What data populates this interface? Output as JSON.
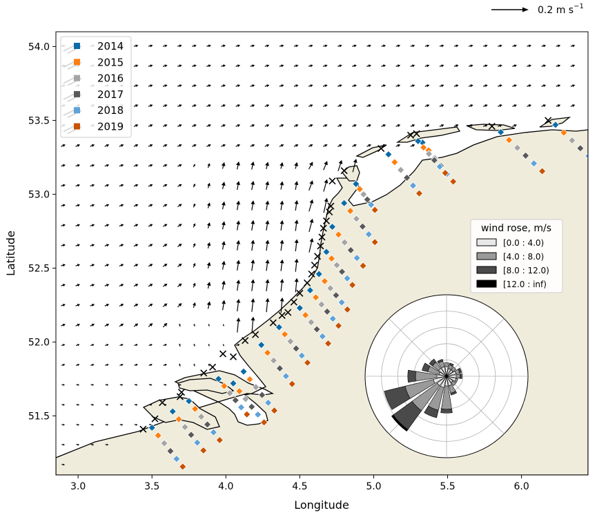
{
  "chart_data": {
    "type": "quiver-map",
    "xlabel": "Longitude",
    "ylabel": "Latitude",
    "xlim": [
      2.85,
      6.45
    ],
    "ylim": [
      51.1,
      54.1
    ],
    "xticks": [
      "3.0",
      "3.5",
      "4.0",
      "4.5",
      "5.0",
      "5.5",
      "6.0"
    ],
    "yticks": [
      "51.5",
      "52.0",
      "52.5",
      "53.0",
      "53.5",
      "54.0"
    ],
    "quiver_key": {
      "label": "0.2 m s$^{-1}$",
      "label_text": "0.2 m s",
      "label_sup": "−1"
    },
    "legend": {
      "position": "top-left",
      "entries": [
        {
          "label": "2014",
          "color": "#0a6ca8"
        },
        {
          "label": "2015",
          "color": "#ff7f0e"
        },
        {
          "label": "2016",
          "color": "#a5a5a5"
        },
        {
          "label": "2017",
          "color": "#595959"
        },
        {
          "label": "2018",
          "color": "#5fa2d8"
        },
        {
          "label": "2019",
          "color": "#c85200"
        }
      ]
    },
    "wind_rose": {
      "title": "wind rose, m/s",
      "bins": [
        {
          "label": "[0.0 : 4.0)",
          "color": "#e8e8e8"
        },
        {
          "label": "[4.0 : 8.0)",
          "color": "#9a9a9a"
        },
        {
          "label": "[8.0 : 12.0)",
          "color": "#4a4a4a"
        },
        {
          "label": "[12.0 : inf)",
          "color": "#000000"
        }
      ],
      "directions_deg": [
        0,
        22.5,
        45,
        67.5,
        90,
        112.5,
        135,
        157.5,
        180,
        202.5,
        225,
        247.5,
        270,
        292.5,
        315,
        337.5
      ],
      "segments": [
        [
          0.05,
          0.02,
          0.0,
          0.0
        ],
        [
          0.04,
          0.02,
          0.01,
          0.0
        ],
        [
          0.04,
          0.02,
          0.0,
          0.0
        ],
        [
          0.05,
          0.02,
          0.01,
          0.0
        ],
        [
          0.05,
          0.02,
          0.01,
          0.0
        ],
        [
          0.05,
          0.01,
          0.0,
          0.0
        ],
        [
          0.04,
          0.02,
          0.0,
          0.0
        ],
        [
          0.05,
          0.04,
          0.01,
          0.0
        ],
        [
          0.05,
          0.12,
          0.02,
          0.0
        ],
        [
          0.06,
          0.12,
          0.04,
          0.0
        ],
        [
          0.06,
          0.16,
          0.12,
          0.01
        ],
        [
          0.07,
          0.15,
          0.11,
          0.0
        ],
        [
          0.05,
          0.11,
          0.04,
          0.0
        ],
        [
          0.04,
          0.06,
          0.03,
          0.0
        ],
        [
          0.05,
          0.04,
          0.02,
          0.0
        ],
        [
          0.05,
          0.03,
          0.01,
          0.0
        ]
      ],
      "rmax": 0.42
    },
    "stations": [
      {
        "x": 3.44,
        "y": 51.41
      },
      {
        "x": 3.52,
        "y": 51.48
      },
      {
        "x": 3.57,
        "y": 51.59
      },
      {
        "x": 3.69,
        "y": 51.63
      },
      {
        "x": 3.7,
        "y": 51.66
      },
      {
        "x": 3.85,
        "y": 51.79
      },
      {
        "x": 3.91,
        "y": 51.83
      },
      {
        "x": 3.98,
        "y": 51.92
      },
      {
        "x": 4.05,
        "y": 51.9
      },
      {
        "x": 4.13,
        "y": 52.01
      },
      {
        "x": 4.2,
        "y": 52.05
      },
      {
        "x": 4.32,
        "y": 52.13
      },
      {
        "x": 4.38,
        "y": 52.18
      },
      {
        "x": 4.42,
        "y": 52.2
      },
      {
        "x": 4.46,
        "y": 52.27
      },
      {
        "x": 4.5,
        "y": 52.33
      },
      {
        "x": 4.55,
        "y": 52.4
      },
      {
        "x": 4.58,
        "y": 52.46
      },
      {
        "x": 4.6,
        "y": 52.52
      },
      {
        "x": 4.62,
        "y": 52.58
      },
      {
        "x": 4.64,
        "y": 52.65
      },
      {
        "x": 4.65,
        "y": 52.71
      },
      {
        "x": 4.66,
        "y": 52.77
      },
      {
        "x": 4.68,
        "y": 52.82
      },
      {
        "x": 4.7,
        "y": 52.88
      },
      {
        "x": 4.71,
        "y": 52.92
      },
      {
        "x": 4.72,
        "y": 53.09
      },
      {
        "x": 4.8,
        "y": 53.16
      },
      {
        "x": 5.05,
        "y": 53.31
      },
      {
        "x": 5.25,
        "y": 53.4
      },
      {
        "x": 5.29,
        "y": 53.41
      },
      {
        "x": 5.8,
        "y": 53.46
      },
      {
        "x": 6.18,
        "y": 53.5
      }
    ],
    "transects": [
      {
        "x": 3.5,
        "y": 51.42,
        "dx": 0.026,
        "dy": -0.033
      },
      {
        "x": 3.64,
        "y": 51.53,
        "dx": 0.026,
        "dy": -0.033
      },
      {
        "x": 3.75,
        "y": 51.6,
        "dx": 0.026,
        "dy": -0.033
      },
      {
        "x": 3.95,
        "y": 51.75,
        "dx": 0.024,
        "dy": -0.03
      },
      {
        "x": 4.05,
        "y": 51.72,
        "dx": 0.026,
        "dy": -0.033
      },
      {
        "x": 4.12,
        "y": 51.8,
        "dx": 0.026,
        "dy": -0.033
      },
      {
        "x": 4.24,
        "y": 51.98,
        "dx": 0.026,
        "dy": -0.033
      },
      {
        "x": 4.36,
        "y": 52.1,
        "dx": 0.024,
        "dy": -0.03
      },
      {
        "x": 4.5,
        "y": 52.23,
        "dx": 0.024,
        "dy": -0.03
      },
      {
        "x": 4.57,
        "y": 52.35,
        "dx": 0.024,
        "dy": -0.03
      },
      {
        "x": 4.63,
        "y": 52.46,
        "dx": 0.024,
        "dy": -0.03
      },
      {
        "x": 4.68,
        "y": 52.61,
        "dx": 0.022,
        "dy": -0.028
      },
      {
        "x": 4.72,
        "y": 52.78,
        "dx": 0.026,
        "dy": -0.033
      },
      {
        "x": 4.8,
        "y": 52.94,
        "dx": 0.026,
        "dy": -0.033
      },
      {
        "x": 4.88,
        "y": 53.07,
        "dx": 0.016,
        "dy": -0.022
      },
      {
        "x": 5.1,
        "y": 53.27,
        "dx": 0.026,
        "dy": -0.033
      },
      {
        "x": 5.33,
        "y": 53.35,
        "dx": 0.026,
        "dy": -0.033
      },
      {
        "x": 5.3,
        "y": 53.36,
        "dx": 0.023,
        "dy": -0.027
      },
      {
        "x": 5.86,
        "y": 53.42,
        "dx": 0.035,
        "dy": -0.033
      },
      {
        "x": 6.23,
        "y": 53.47,
        "dx": 0.035,
        "dy": -0.033
      }
    ]
  }
}
